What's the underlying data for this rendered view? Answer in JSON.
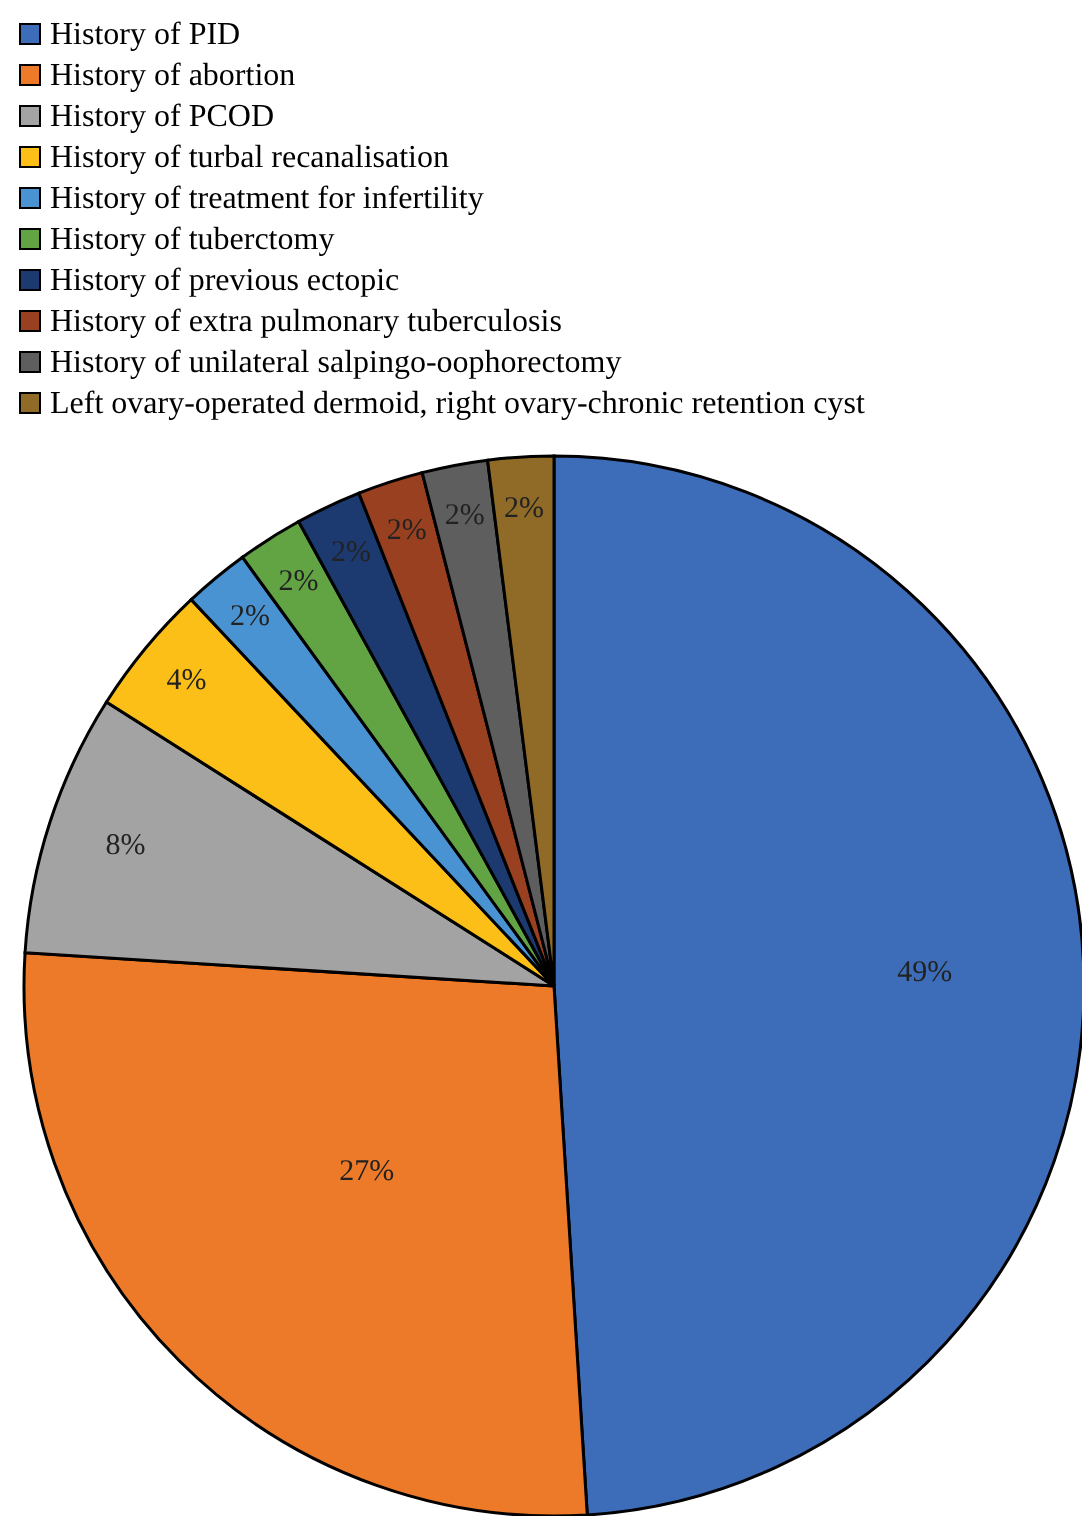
{
  "chart_data": {
    "type": "pie",
    "categories": [
      "History of PID",
      "History of abortion",
      "History of PCOD",
      "History of turbal recanalisation",
      "History of treatment for infertility",
      "History of tuberctomy",
      "History of previous ectopic",
      "History of extra pulmonary tuberculosis",
      "History of unilateral salpingo-oophorectomy",
      "Left ovary-operated dermoid, right ovary-chronic retention cyst"
    ],
    "values": [
      49,
      27,
      8,
      4,
      2,
      2,
      2,
      2,
      2,
      2
    ],
    "colors": [
      "#3d6db8",
      "#ec7a28",
      "#a3a3a3",
      "#fbbf17",
      "#4a93d2",
      "#62a344",
      "#1c3a70",
      "#984020",
      "#5e5e5e",
      "#906b28"
    ],
    "value_labels": [
      "49%",
      "27%",
      "8%",
      "4%",
      "2%",
      "2%",
      "2%",
      "2%",
      "2%",
      "2%"
    ],
    "legend": "top left"
  }
}
